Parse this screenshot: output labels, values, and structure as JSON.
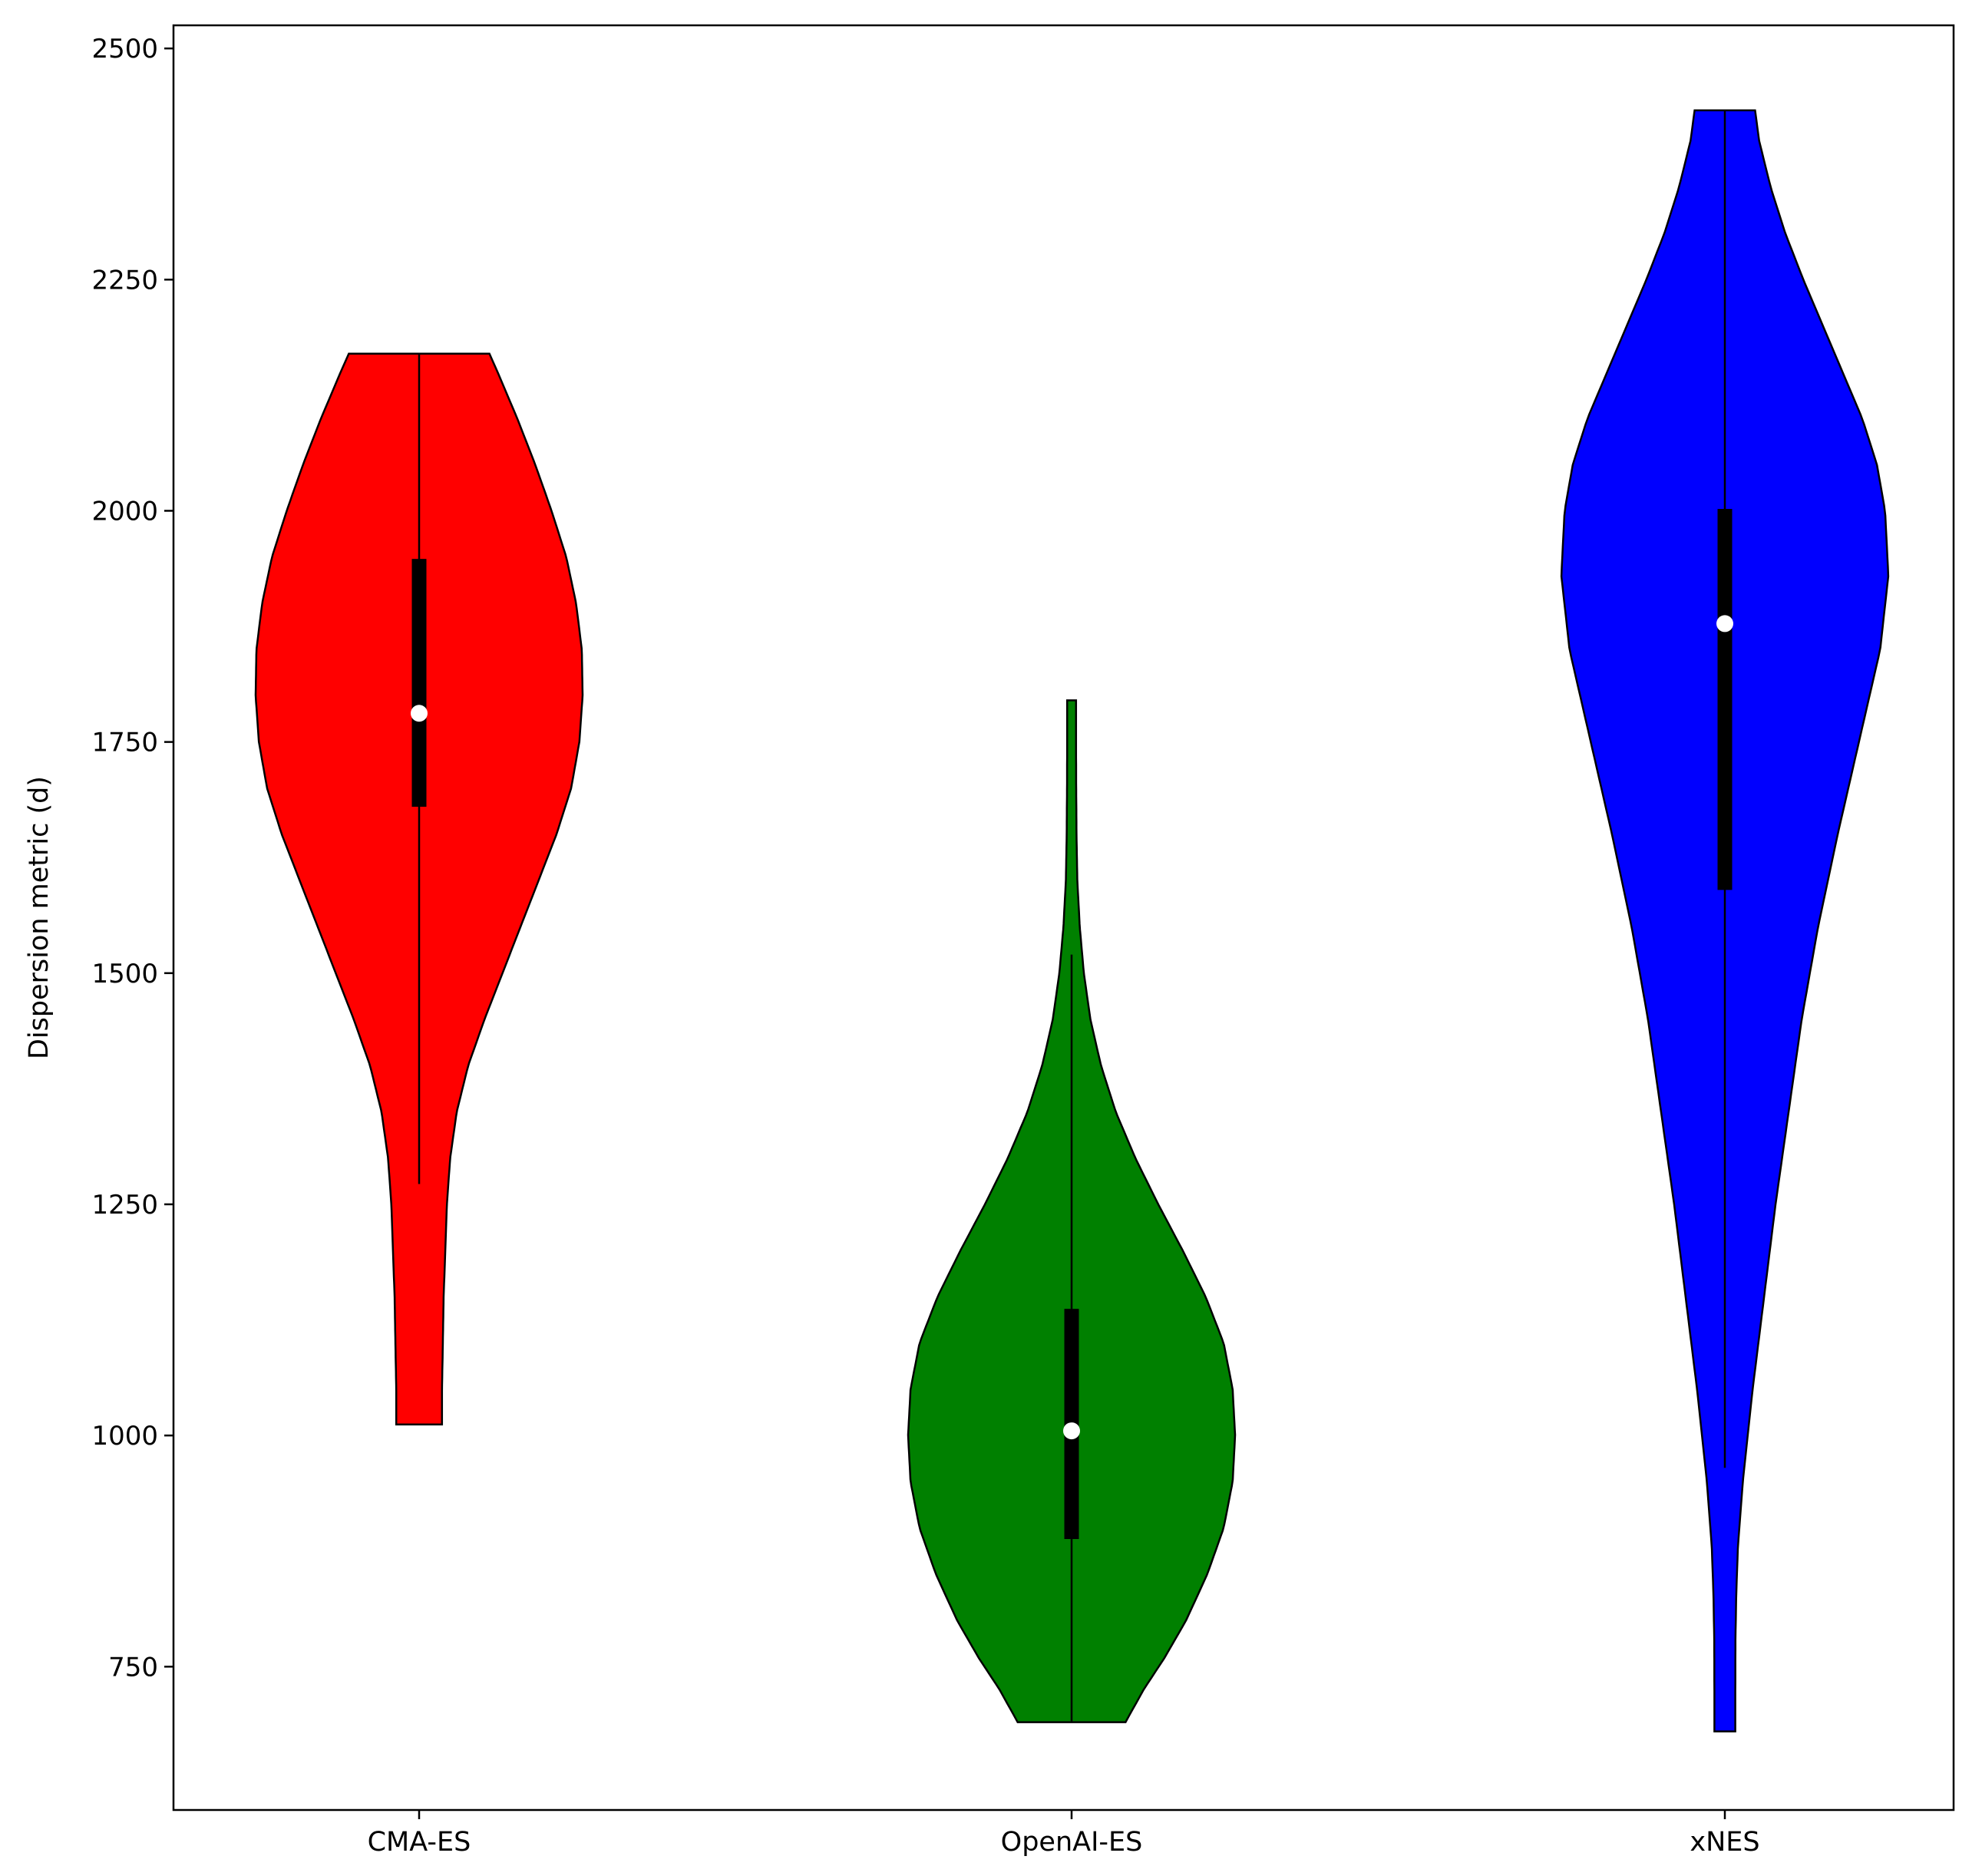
{
  "chart_data": {
    "type": "violin",
    "title": "",
    "xlabel": "",
    "ylabel": "Dispersion metric (d)",
    "ylim": [
      595,
      2525
    ],
    "yticks": [
      750,
      1000,
      1250,
      1500,
      1750,
      2000,
      2250,
      2500
    ],
    "grid": false,
    "categories": [
      "CMA-ES",
      "OpenAI-ES",
      "xNES"
    ],
    "series": [
      {
        "category": "CMA-ES",
        "color": "#ff0000",
        "min": 1012,
        "max": 2170,
        "whisker_low": 1272,
        "whisker_high": 2170,
        "q1": 1680,
        "median": 1781,
        "q3": 1948,
        "density": [
          [
            1012,
            0.14
          ],
          [
            1050,
            0.14
          ],
          [
            1100,
            0.145
          ],
          [
            1150,
            0.15
          ],
          [
            1200,
            0.16
          ],
          [
            1250,
            0.17
          ],
          [
            1300,
            0.19
          ],
          [
            1350,
            0.23
          ],
          [
            1400,
            0.3
          ],
          [
            1450,
            0.4
          ],
          [
            1500,
            0.51
          ],
          [
            1550,
            0.62
          ],
          [
            1600,
            0.73
          ],
          [
            1650,
            0.84
          ],
          [
            1700,
            0.93
          ],
          [
            1750,
            0.98
          ],
          [
            1800,
            1.0
          ],
          [
            1850,
            0.995
          ],
          [
            1900,
            0.96
          ],
          [
            1950,
            0.9
          ],
          [
            2000,
            0.81
          ],
          [
            2050,
            0.71
          ],
          [
            2100,
            0.6
          ],
          [
            2150,
            0.48
          ],
          [
            2170,
            0.43
          ]
        ]
      },
      {
        "category": "OpenAI-ES",
        "color": "#008000",
        "min": 690,
        "max": 1795,
        "whisker_low": 690,
        "whisker_high": 1520,
        "q1": 888,
        "median": 1005,
        "q3": 1137,
        "density": [
          [
            690,
            0.33
          ],
          [
            725,
            0.44
          ],
          [
            760,
            0.57
          ],
          [
            800,
            0.7
          ],
          [
            850,
            0.83
          ],
          [
            900,
            0.93
          ],
          [
            950,
            0.985
          ],
          [
            1000,
            1.0
          ],
          [
            1050,
            0.985
          ],
          [
            1100,
            0.93
          ],
          [
            1150,
            0.82
          ],
          [
            1200,
            0.68
          ],
          [
            1250,
            0.53
          ],
          [
            1300,
            0.39
          ],
          [
            1350,
            0.27
          ],
          [
            1400,
            0.18
          ],
          [
            1450,
            0.115
          ],
          [
            1500,
            0.075
          ],
          [
            1550,
            0.05
          ],
          [
            1600,
            0.035
          ],
          [
            1650,
            0.03
          ],
          [
            1700,
            0.028
          ],
          [
            1750,
            0.027
          ],
          [
            1795,
            0.027
          ]
        ]
      },
      {
        "category": "xNES",
        "color": "#0000ff",
        "min": 680,
        "max": 2433,
        "whisker_low": 965,
        "whisker_high": 2433,
        "q1": 1590,
        "median": 1878,
        "q3": 2002,
        "density": [
          [
            680,
            0.064
          ],
          [
            730,
            0.064
          ],
          [
            780,
            0.065
          ],
          [
            830,
            0.07
          ],
          [
            880,
            0.08
          ],
          [
            950,
            0.11
          ],
          [
            1050,
            0.17
          ],
          [
            1150,
            0.24
          ],
          [
            1250,
            0.31
          ],
          [
            1350,
            0.39
          ],
          [
            1450,
            0.47
          ],
          [
            1550,
            0.57
          ],
          [
            1650,
            0.69
          ],
          [
            1750,
            0.82
          ],
          [
            1850,
            0.95
          ],
          [
            1930,
            1.0
          ],
          [
            2000,
            0.98
          ],
          [
            2050,
            0.93
          ],
          [
            2100,
            0.84
          ],
          [
            2150,
            0.72
          ],
          [
            2200,
            0.6
          ],
          [
            2250,
            0.48
          ],
          [
            2300,
            0.37
          ],
          [
            2350,
            0.28
          ],
          [
            2400,
            0.21
          ],
          [
            2433,
            0.185
          ]
        ]
      }
    ]
  }
}
